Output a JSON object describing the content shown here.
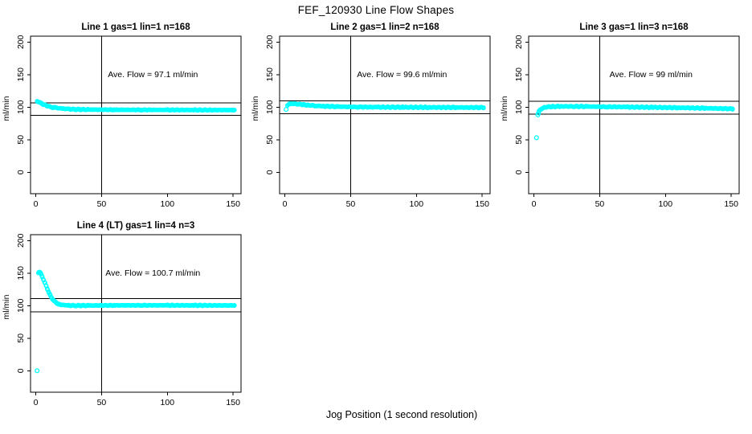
{
  "chart_data": {
    "type": "scatter",
    "title": "FEF_120930  Line Flow Shapes",
    "xlabel": "Jog Position (1 second resolution)",
    "ylabel": "ml/min",
    "x_ticks": [
      0,
      50,
      100,
      150
    ],
    "y_ticks": [
      0,
      50,
      100,
      150,
      200
    ],
    "x_range": [
      -4,
      156
    ],
    "y_range": [
      -33,
      209
    ],
    "grid": false,
    "legend": "none",
    "point_color": "#00ffff",
    "marker": "open-circle",
    "panels": [
      {
        "id": "line-1",
        "title": "Line 1 gas=1 lin=1 n=168",
        "ave_flow": 97.1,
        "ave_flow_label": "Ave. Flow =  97.1  ml/min",
        "h_lines": [
          106.8,
          87.4
        ],
        "v_line": 50,
        "outliers": [],
        "envelope": [
          [
            1,
            108.5
          ],
          [
            2,
            108
          ],
          [
            3,
            107
          ],
          [
            4,
            106
          ],
          [
            5,
            105
          ],
          [
            7,
            103.2
          ],
          [
            9,
            101.6
          ],
          [
            12,
            100
          ],
          [
            15,
            99
          ],
          [
            20,
            97.8
          ],
          [
            25,
            97.1
          ],
          [
            30,
            96.6
          ],
          [
            40,
            96.2
          ],
          [
            60,
            95.9
          ],
          [
            80,
            95.8
          ],
          [
            100,
            95.7
          ],
          [
            120,
            95.6
          ],
          [
            151,
            95.5
          ]
        ]
      },
      {
        "id": "line-2",
        "title": "Line 2 gas=1 lin=2 n=168",
        "ave_flow": 99.6,
        "ave_flow_label": "Ave. Flow =  99.6  ml/min",
        "h_lines": [
          109.6,
          89.6
        ],
        "v_line": 50,
        "outliers": [
          [
            1,
            96.5
          ]
        ],
        "envelope": [
          [
            2,
            102.5
          ],
          [
            3,
            104.2
          ],
          [
            4,
            105
          ],
          [
            6,
            105.3
          ],
          [
            8,
            105
          ],
          [
            10,
            104.6
          ],
          [
            14,
            103.8
          ],
          [
            18,
            103
          ],
          [
            24,
            102
          ],
          [
            30,
            101.4
          ],
          [
            40,
            100.7
          ],
          [
            55,
            100.2
          ],
          [
            70,
            100
          ],
          [
            90,
            99.8
          ],
          [
            110,
            99.6
          ],
          [
            130,
            99.5
          ],
          [
            151,
            99.4
          ]
        ]
      },
      {
        "id": "line-3",
        "title": "Line 3 gas=1 lin=3 n=168",
        "ave_flow": 99,
        "ave_flow_label": "Ave. Flow =  99  ml/min",
        "h_lines": [
          108.9,
          89.1
        ],
        "v_line": 50,
        "outliers": [
          [
            2,
            53
          ],
          [
            3,
            88
          ],
          [
            3.5,
            91
          ]
        ],
        "envelope": [
          [
            4,
            94.5
          ],
          [
            5,
            96.5
          ],
          [
            6,
            98
          ],
          [
            8,
            99.4
          ],
          [
            10,
            100.2
          ],
          [
            14,
            100.8
          ],
          [
            20,
            101.1
          ],
          [
            30,
            101.1
          ],
          [
            40,
            100.9
          ],
          [
            55,
            100.5
          ],
          [
            70,
            100.2
          ],
          [
            90,
            99.7
          ],
          [
            110,
            99.1
          ],
          [
            130,
            98.4
          ],
          [
            151,
            97.4
          ]
        ]
      },
      {
        "id": "line-4",
        "title": "Line 4 (LT) gas=1 lin=4 n=3",
        "ave_flow": 100.7,
        "ave_flow_label": "Ave. Flow =  100.7  ml/min",
        "h_lines": [
          110.8,
          90.6
        ],
        "v_line": 50,
        "outliers": [
          [
            1,
            0
          ]
        ],
        "envelope": [
          [
            2,
            150
          ],
          [
            2.5,
            152
          ],
          [
            3,
            151.5
          ],
          [
            4,
            148.5
          ],
          [
            5,
            144.5
          ],
          [
            6,
            139.5
          ],
          [
            7,
            134.5
          ],
          [
            8,
            129.5
          ],
          [
            9,
            124.5
          ],
          [
            10,
            120
          ],
          [
            11,
            116
          ],
          [
            12,
            112.5
          ],
          [
            13,
            109.5
          ],
          [
            14,
            107
          ],
          [
            15,
            105.2
          ],
          [
            16,
            103.8
          ],
          [
            17,
            102.8
          ],
          [
            18,
            102
          ],
          [
            20,
            101.2
          ],
          [
            22,
            100.7
          ],
          [
            25,
            100.3
          ],
          [
            30,
            100.1
          ],
          [
            40,
            100.2
          ],
          [
            60,
            100.4
          ],
          [
            80,
            100.5
          ],
          [
            100,
            100.5
          ],
          [
            120,
            100.4
          ],
          [
            151,
            100.3
          ]
        ]
      }
    ]
  }
}
